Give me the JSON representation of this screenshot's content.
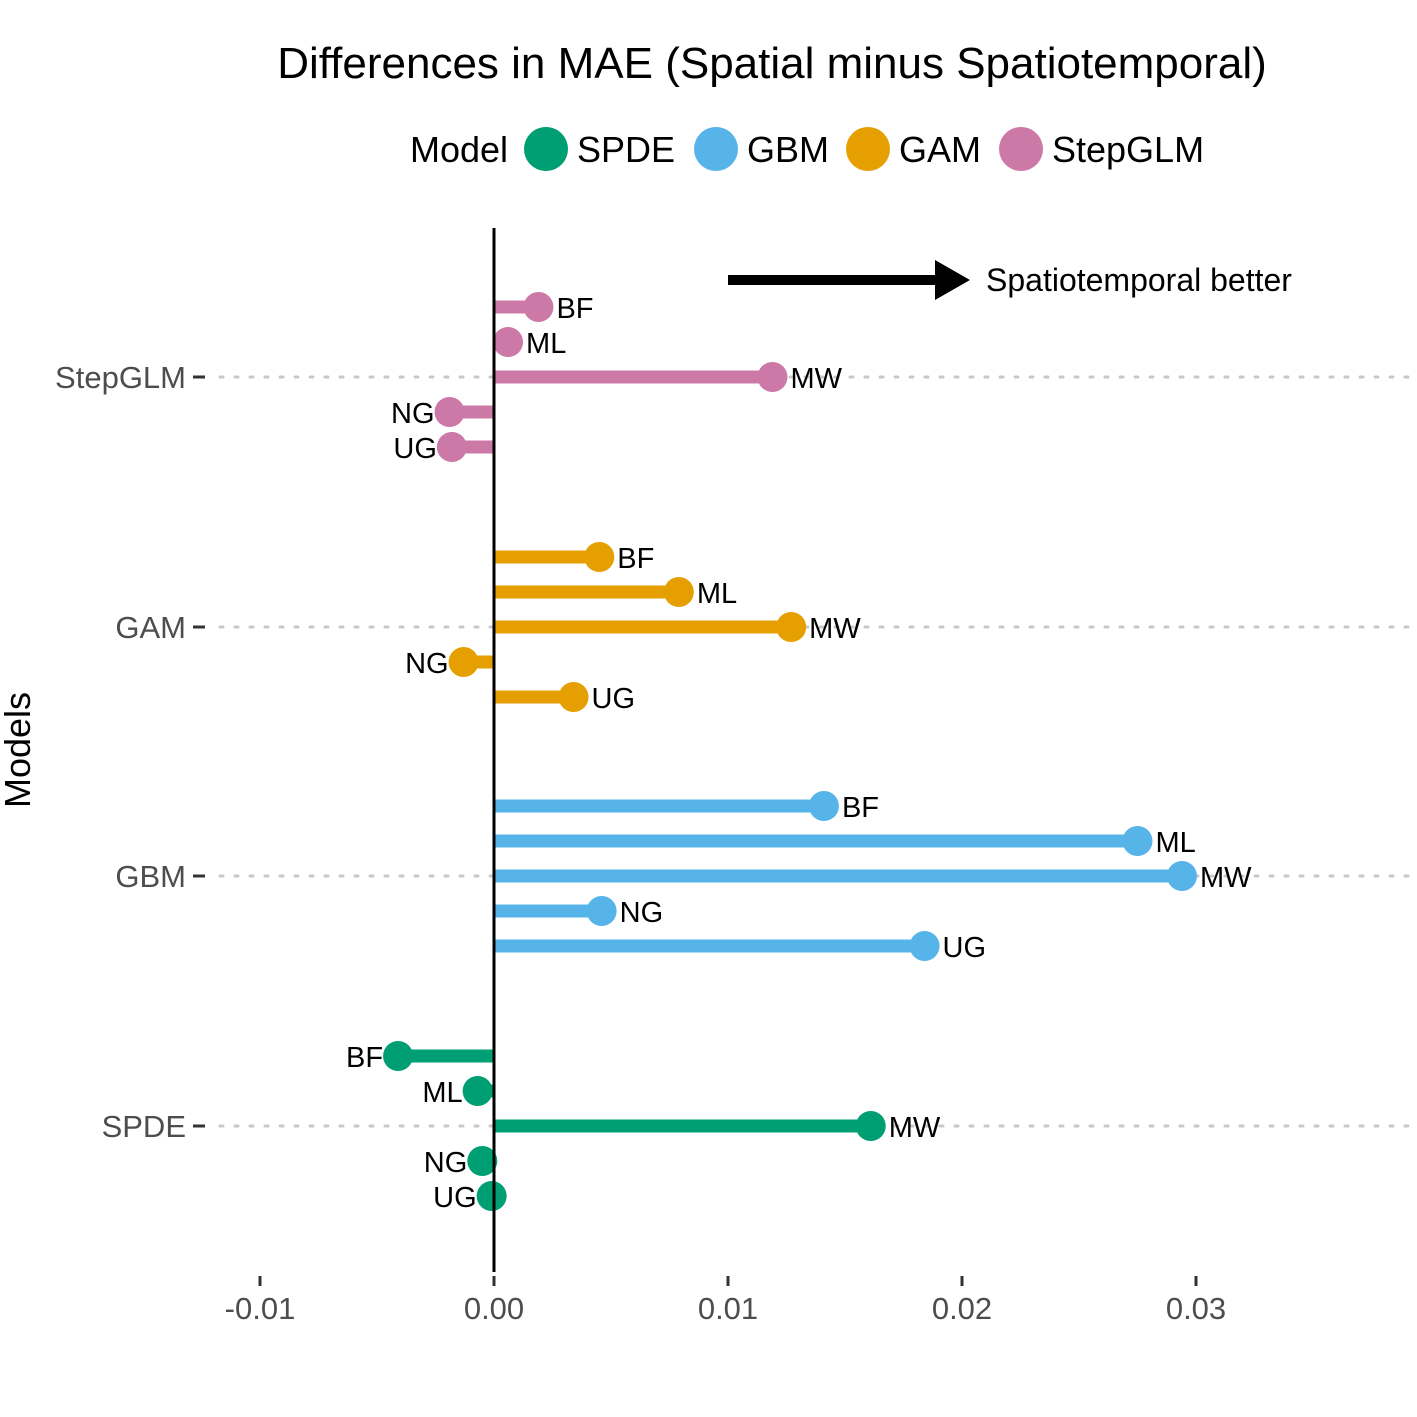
{
  "chart_data": {
    "type": "lollipop",
    "title": "Differences in MAE (Spatial minus Spatiotemporal)",
    "xlabel": "",
    "ylabel": "Models",
    "xlim": [
      -0.0113,
      0.0391
    ],
    "x_ticks": [
      -0.01,
      0.0,
      0.01,
      0.02,
      0.03
    ],
    "x_tick_labels": [
      "-0.01",
      "0.00",
      "0.01",
      "0.02",
      "0.03"
    ],
    "reference_line": 0,
    "grid": "dotted horizontal lines at model categories",
    "legend": {
      "title": "Model",
      "position": "top",
      "entries": [
        {
          "name": "SPDE",
          "color": "#009E73"
        },
        {
          "name": "GBM",
          "color": "#56B4E9"
        },
        {
          "name": "GAM",
          "color": "#E69F00"
        },
        {
          "name": "StepGLM",
          "color": "#CC79A7"
        }
      ]
    },
    "annotation": {
      "text": "Spatiotemporal better",
      "arrow": "right"
    },
    "categories": [
      "SPDE",
      "GBM",
      "GAM",
      "StepGLM"
    ],
    "series": [
      {
        "name": "SPDE",
        "color": "#009E73",
        "points": [
          {
            "label": "BF",
            "value": -0.0041
          },
          {
            "label": "ML",
            "value": -0.0007
          },
          {
            "label": "MW",
            "value": 0.0161
          },
          {
            "label": "NG",
            "value": -0.0005
          },
          {
            "label": "UG",
            "value": -0.0001
          }
        ]
      },
      {
        "name": "GBM",
        "color": "#56B4E9",
        "points": [
          {
            "label": "BF",
            "value": 0.0141
          },
          {
            "label": "ML",
            "value": 0.0275
          },
          {
            "label": "MW",
            "value": 0.0294
          },
          {
            "label": "NG",
            "value": 0.0046
          },
          {
            "label": "UG",
            "value": 0.0184
          }
        ]
      },
      {
        "name": "GAM",
        "color": "#E69F00",
        "points": [
          {
            "label": "BF",
            "value": 0.0045
          },
          {
            "label": "ML",
            "value": 0.0079
          },
          {
            "label": "MW",
            "value": 0.0127
          },
          {
            "label": "NG",
            "value": -0.0013
          },
          {
            "label": "UG",
            "value": 0.0034
          }
        ]
      },
      {
        "name": "StepGLM",
        "color": "#CC79A7",
        "points": [
          {
            "label": "BF",
            "value": 0.0019
          },
          {
            "label": "ML",
            "value": 0.0006
          },
          {
            "label": "MW",
            "value": 0.0119
          },
          {
            "label": "NG",
            "value": -0.0019
          },
          {
            "label": "UG",
            "value": -0.0018
          }
        ]
      }
    ]
  }
}
